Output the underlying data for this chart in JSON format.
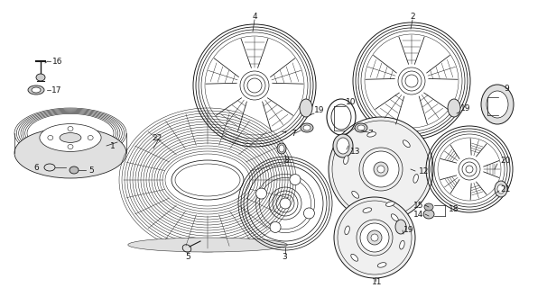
{
  "bg_color": "#ffffff",
  "line_color": "#1a1a1a",
  "fig_width": 6.06,
  "fig_height": 3.2,
  "dpi": 100,
  "lw_main": 0.7,
  "lw_thin": 0.4,
  "gray_fill": "#e8e8e8",
  "mid_gray": "#cccccc",
  "dark_gray": "#888888"
}
